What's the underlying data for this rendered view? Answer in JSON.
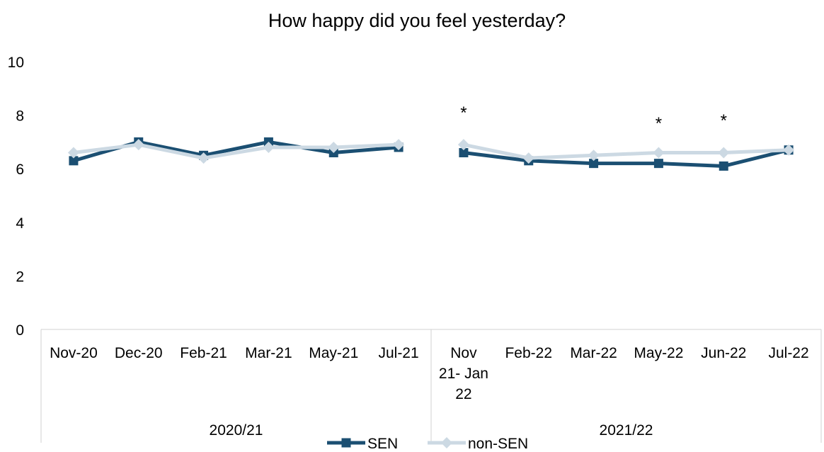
{
  "chart_data": {
    "type": "line",
    "title": "How happy did you feel yesterday?",
    "xlabel": "",
    "ylabel": "",
    "ylim": [
      0,
      10
    ],
    "yticks": [
      0,
      2,
      4,
      6,
      8,
      10
    ],
    "categories": [
      [
        "Nov-20"
      ],
      [
        "Dec-20"
      ],
      [
        "Feb-21"
      ],
      [
        "Mar-21"
      ],
      [
        "May-21"
      ],
      [
        "Jul-21"
      ],
      [
        "Nov",
        "21- Jan",
        "22"
      ],
      [
        "Feb-22"
      ],
      [
        "Mar-22"
      ],
      [
        "May-22"
      ],
      [
        "Jun-22"
      ],
      [
        "Jul-22"
      ]
    ],
    "groups": [
      {
        "label": "2020/21",
        "start": 0,
        "end": 5
      },
      {
        "label": "2021/22",
        "start": 6,
        "end": 11
      }
    ],
    "series": [
      {
        "name": "SEN",
        "color": "#1b4f72",
        "marker": "square",
        "values": [
          6.3,
          7.0,
          6.5,
          7.0,
          6.6,
          6.8,
          6.6,
          6.3,
          6.2,
          6.2,
          6.1,
          6.7
        ]
      },
      {
        "name": "non-SEN",
        "color": "#ccd9e3",
        "marker": "diamond",
        "values": [
          6.6,
          6.9,
          6.4,
          6.8,
          6.8,
          6.9,
          6.9,
          6.4,
          6.5,
          6.6,
          6.6,
          6.7
        ]
      }
    ],
    "annotations": [
      {
        "index": 6,
        "text": "*",
        "y": 8.1
      },
      {
        "index": 9,
        "text": "*",
        "y": 7.7
      },
      {
        "index": 10,
        "text": "*",
        "y": 7.8
      }
    ],
    "grid": false,
    "legend": "bottom"
  }
}
